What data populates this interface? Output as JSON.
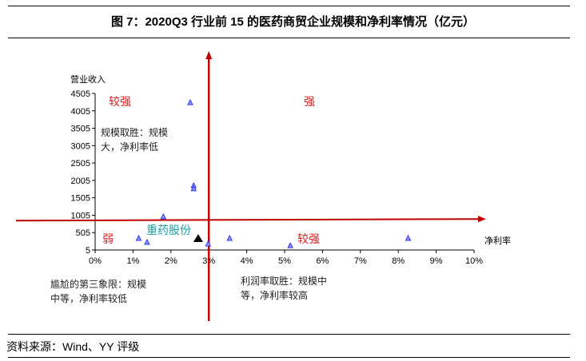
{
  "title": "图 7：2020Q3 行业前 15 的医药商贸企业规模和净利率情况（亿元）",
  "source": "资料来源：Wind、YY 评级",
  "chart_data": {
    "type": "scatter",
    "title": "图 7：2020Q3 行业前 15 的医药商贸企业规模和净利率情况（亿元）",
    "xlabel": "净利率",
    "ylabel": "营业收入",
    "xlim": [
      0,
      10
    ],
    "ylim": [
      5,
      4505
    ],
    "x_ticks": [
      "0%",
      "1%",
      "2%",
      "3%",
      "4%",
      "5%",
      "6%",
      "7%",
      "8%",
      "9%",
      "10%"
    ],
    "y_ticks": [
      "5",
      "505",
      "1005",
      "1505",
      "2005",
      "2505",
      "3005",
      "3505",
      "4005",
      "4505"
    ],
    "grid": false,
    "divider": {
      "x": 3,
      "y": 850
    },
    "quadrant_labels": {
      "top_left": "较强",
      "top_right": "强",
      "bottom_left": "弱",
      "bottom_right": "较强"
    },
    "annotations": {
      "top_left": [
        "规模取胜：规模",
        "大，净利率低"
      ],
      "bottom_left": [
        "尴尬的第三象限：规模",
        "中等，净利率较低"
      ],
      "bottom_right": [
        "利润率取胜：规模中",
        "等，净利率较高"
      ],
      "highlight": "重药股份"
    },
    "colors": {
      "points": "#3333ff",
      "point_fill": "#8f9fe0",
      "highlight": "#000000",
      "divider": "#c00000",
      "quadrant_text": "#d42020",
      "highlight_text": "#1aa0a0"
    },
    "points": [
      {
        "x": 2.51,
        "y": 4250
      },
      {
        "x": 2.6,
        "y": 1865
      },
      {
        "x": 2.6,
        "y": 1775
      },
      {
        "x": 1.8,
        "y": 970
      },
      {
        "x": 1.15,
        "y": 350
      },
      {
        "x": 1.37,
        "y": 235
      },
      {
        "x": 2.98,
        "y": 190
      },
      {
        "x": 3.55,
        "y": 350
      },
      {
        "x": 5.15,
        "y": 140
      },
      {
        "x": 8.26,
        "y": 350
      }
    ],
    "highlight_point": {
      "name": "重药股份",
      "x": 2.72,
      "y": 350
    }
  }
}
